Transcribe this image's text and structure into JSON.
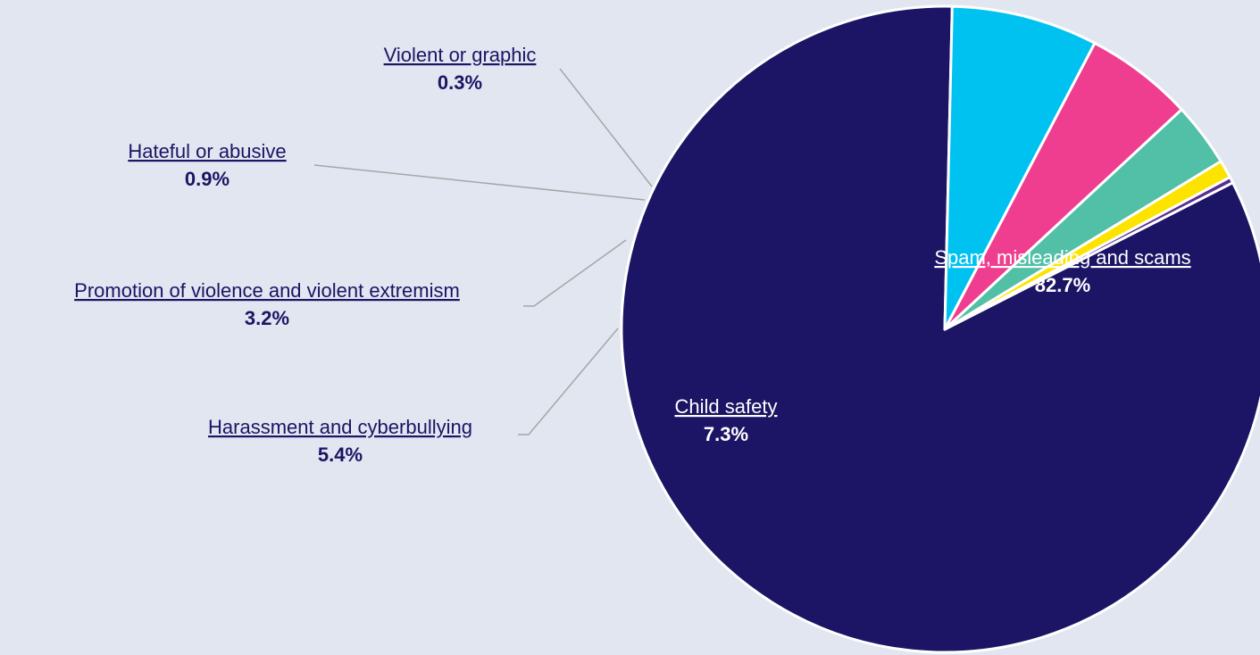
{
  "chart_data": {
    "type": "pie",
    "slices": [
      {
        "label": "Spam, misleading and scams",
        "value_label": "82.7%",
        "value": 82.7,
        "color": "#1c1464",
        "label_color": "#ffffff"
      },
      {
        "label": "Child safety",
        "value_label": "7.3%",
        "value": 7.3,
        "color": "#00c2f1",
        "label_color": "#ffffff"
      },
      {
        "label": "Harassment and cyberbullying",
        "value_label": "5.4%",
        "value": 5.4,
        "color": "#ef3e8f",
        "label_color": "#1c1464"
      },
      {
        "label": "Promotion of violence and violent extremism",
        "value_label": "3.2%",
        "value": 3.2,
        "color": "#52c0a6",
        "label_color": "#1c1464"
      },
      {
        "label": "Hateful or abusive",
        "value_label": "0.9%",
        "value": 0.9,
        "color": "#fce300",
        "label_color": "#1c1464"
      },
      {
        "label": "Violent or graphic",
        "value_label": "0.3%",
        "value": 0.3,
        "color": "#5a2d91",
        "label_color": "#1c1464"
      }
    ]
  }
}
